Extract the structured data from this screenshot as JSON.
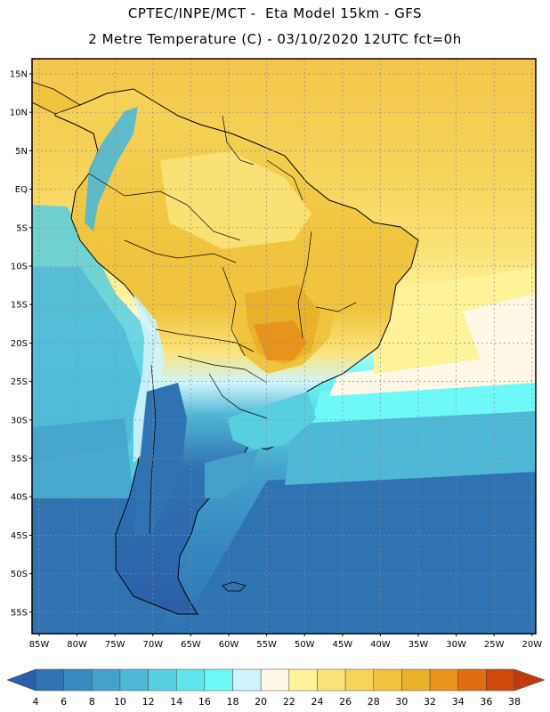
{
  "header": {
    "line1": "CPTEC/INPE/MCT -  Eta Model 15km - GFS",
    "line2": "2 Metre Temperature (C) - 03/10/2020 12UTC fct=0h"
  },
  "map": {
    "lat_labels": [
      "15N",
      "10N",
      "5N",
      "EQ",
      "5S",
      "10S",
      "15S",
      "20S",
      "25S",
      "30S",
      "35S",
      "40S",
      "45S",
      "50S",
      "55S"
    ],
    "lon_labels": [
      "85W",
      "80W",
      "75W",
      "70W",
      "65W",
      "60W",
      "55W",
      "50W",
      "45W",
      "40W",
      "35W",
      "30W",
      "25W",
      "20W"
    ],
    "land_outline_color": "#000000",
    "grid_color": "#8c8c8c"
  },
  "colorbar": {
    "labels": [
      "4",
      "6",
      "8",
      "10",
      "12",
      "14",
      "16",
      "18",
      "20",
      "22",
      "24",
      "26",
      "28",
      "30",
      "32",
      "34",
      "36",
      "38"
    ],
    "colors": [
      "#2b5fa8",
      "#2f73b3",
      "#3789c0",
      "#43a1cc",
      "#4fb8d6",
      "#57cfe0",
      "#5fe6ea",
      "#6ff8f8",
      "#cff4fb",
      "#fff8e6",
      "#fff39a",
      "#fbe37a",
      "#f6d45a",
      "#f0c43e",
      "#eab22a",
      "#e7931c",
      "#e06d12",
      "#d0480c",
      "#c03a10"
    ]
  }
}
